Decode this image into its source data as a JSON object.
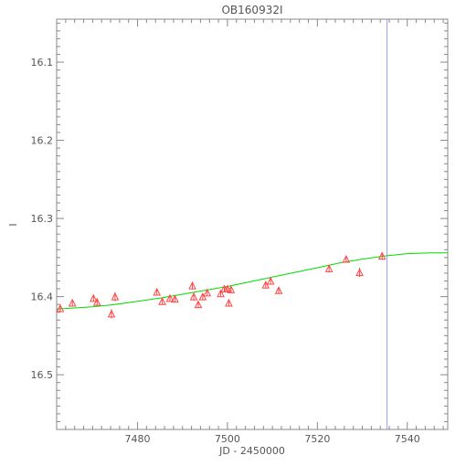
{
  "chart_data": {
    "type": "scatter",
    "title": "OB160932I",
    "xlabel": "JD - 2450000",
    "ylabel": "I",
    "xlim": [
      7462,
      7549
    ],
    "ylim": [
      16.57,
      16.045
    ],
    "xticks": [
      7480,
      7500,
      7520,
      7540
    ],
    "xtick_labels": [
      "7480",
      "7500",
      "7520",
      "7540"
    ],
    "yticks": [
      16.1,
      16.2,
      16.3,
      16.4,
      16.5
    ],
    "ytick_labels": [
      "16.1",
      "16.2",
      "16.3",
      "16.4",
      "16.5"
    ],
    "grid": false,
    "colors": {
      "axes": "#888888",
      "points": "#ff4444",
      "model": "#00dd00",
      "vline": "#9999ff"
    },
    "series": [
      {
        "kind": "points",
        "marker": "triangle",
        "x": [
          7462.8,
          7465.5,
          7470.2,
          7471.0,
          7474.2,
          7475.0,
          7484.3,
          7485.5,
          7487.2,
          7488.3,
          7492.2,
          7492.5,
          7493.5,
          7494.5,
          7495.5,
          7498.5,
          7499.3,
          7500.0,
          7500.3,
          7500.8,
          7508.5,
          7509.6,
          7511.4,
          7522.6,
          7526.4,
          7529.4,
          7534.4
        ],
        "y": [
          16.415,
          16.408,
          16.402,
          16.407,
          16.422,
          16.4,
          16.394,
          16.406,
          16.402,
          16.403,
          16.386,
          16.4,
          16.41,
          16.4,
          16.395,
          16.396,
          16.39,
          16.39,
          16.408,
          16.391,
          16.385,
          16.38,
          16.392,
          16.364,
          16.352,
          16.369,
          16.348
        ],
        "yerr": [
          0.005,
          0.004,
          0.004,
          0.005,
          0.006,
          0.006,
          0.004,
          0.004,
          0.004,
          0.004,
          0.005,
          0.005,
          0.004,
          0.004,
          0.004,
          0.004,
          0.004,
          0.004,
          0.004,
          0.004,
          0.004,
          0.004,
          0.004,
          0.005,
          0.004,
          0.006,
          0.005
        ]
      },
      {
        "kind": "model",
        "x": [
          7462,
          7470,
          7475,
          7480,
          7485,
          7490,
          7495,
          7500,
          7505,
          7510,
          7515,
          7520,
          7525,
          7530,
          7535,
          7540,
          7545,
          7549
        ],
        "y": [
          16.416,
          16.413,
          16.41,
          16.406,
          16.402,
          16.397,
          16.392,
          16.387,
          16.381,
          16.375,
          16.369,
          16.363,
          16.357,
          16.352,
          16.348,
          16.345,
          16.344,
          16.344
        ]
      }
    ],
    "vline_x": 7535.5
  }
}
